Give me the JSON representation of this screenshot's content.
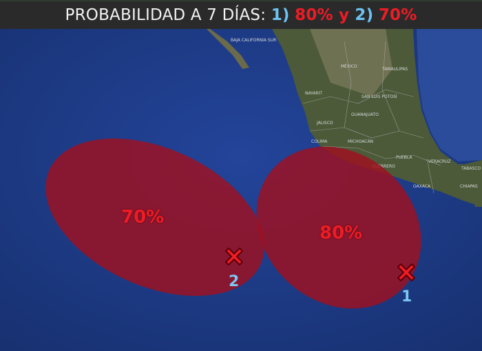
{
  "header": {
    "prefix": "PROBABILIDAD A 7 DÍAS: ",
    "item1_label": "1)",
    "item1_value": "80%",
    "conjunction": " y ",
    "item2_label": "2)",
    "item2_value": "70%"
  },
  "areas": [
    {
      "id": "1",
      "probability": "80%",
      "marker_label": "1"
    },
    {
      "id": "2",
      "probability": "70%",
      "marker_label": "2"
    }
  ],
  "map_labels": [
    "BAJA CALIFORNIA SUR",
    "MÉXICO",
    "TAMAULIPAS",
    "NAYARIT",
    "SAN LUIS POTOSÍ",
    "JALISCO",
    "GUANAJUATO",
    "COLIMA",
    "MICHOACÁN",
    "PUEBLA",
    "GUERRERO",
    "VERACRUZ",
    "OAXACA",
    "TABASCO",
    "CHIAPAS"
  ],
  "colors": {
    "area_fill": "#a0101e",
    "text_red": "#ee1c24",
    "text_blue": "#6cc3f2",
    "ocean": "#1f3d8a",
    "land": "#4a5a3a",
    "header_bg": "#2a2a2b"
  }
}
